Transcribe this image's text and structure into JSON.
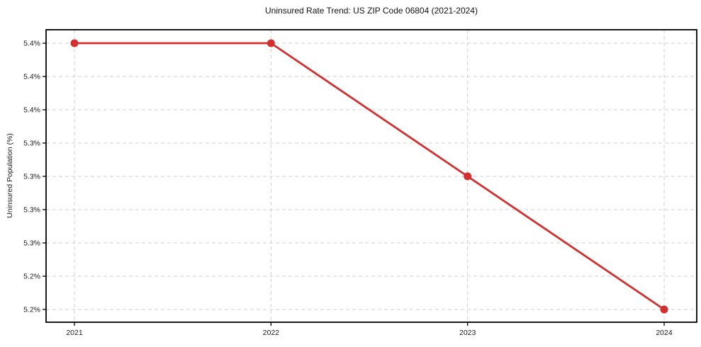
{
  "chart_data": {
    "type": "line",
    "title": "Uninsured Rate Trend: US ZIP Code 06804 (2021-2024)",
    "xlabel": "",
    "ylabel": "Uninsured Population (%)",
    "x": [
      2021,
      2022,
      2023,
      2024
    ],
    "series": [
      {
        "name": "Uninsured Population (%)",
        "values": [
          5.4,
          5.4,
          5.3,
          5.2
        ]
      }
    ],
    "xtick_labels": [
      "2021",
      "2022",
      "2023",
      "2024"
    ],
    "ytick_labels": [
      "5.4%",
      "5.4%",
      "5.4%",
      "5.3%",
      "5.3%",
      "5.3%",
      "5.3%",
      "5.2%",
      "5.2%"
    ],
    "ytick_values": [
      5.4,
      5.375,
      5.35,
      5.325,
      5.3,
      5.275,
      5.25,
      5.225,
      5.2
    ],
    "ylim": [
      5.2,
      5.4
    ],
    "grid": true,
    "grid_style": "dashed",
    "legend_position": "none",
    "line_color": "#d32f2f",
    "marker": "circle",
    "grid_color": "#cfcfcf",
    "spine_color": "#000000",
    "background": "#ffffff"
  }
}
